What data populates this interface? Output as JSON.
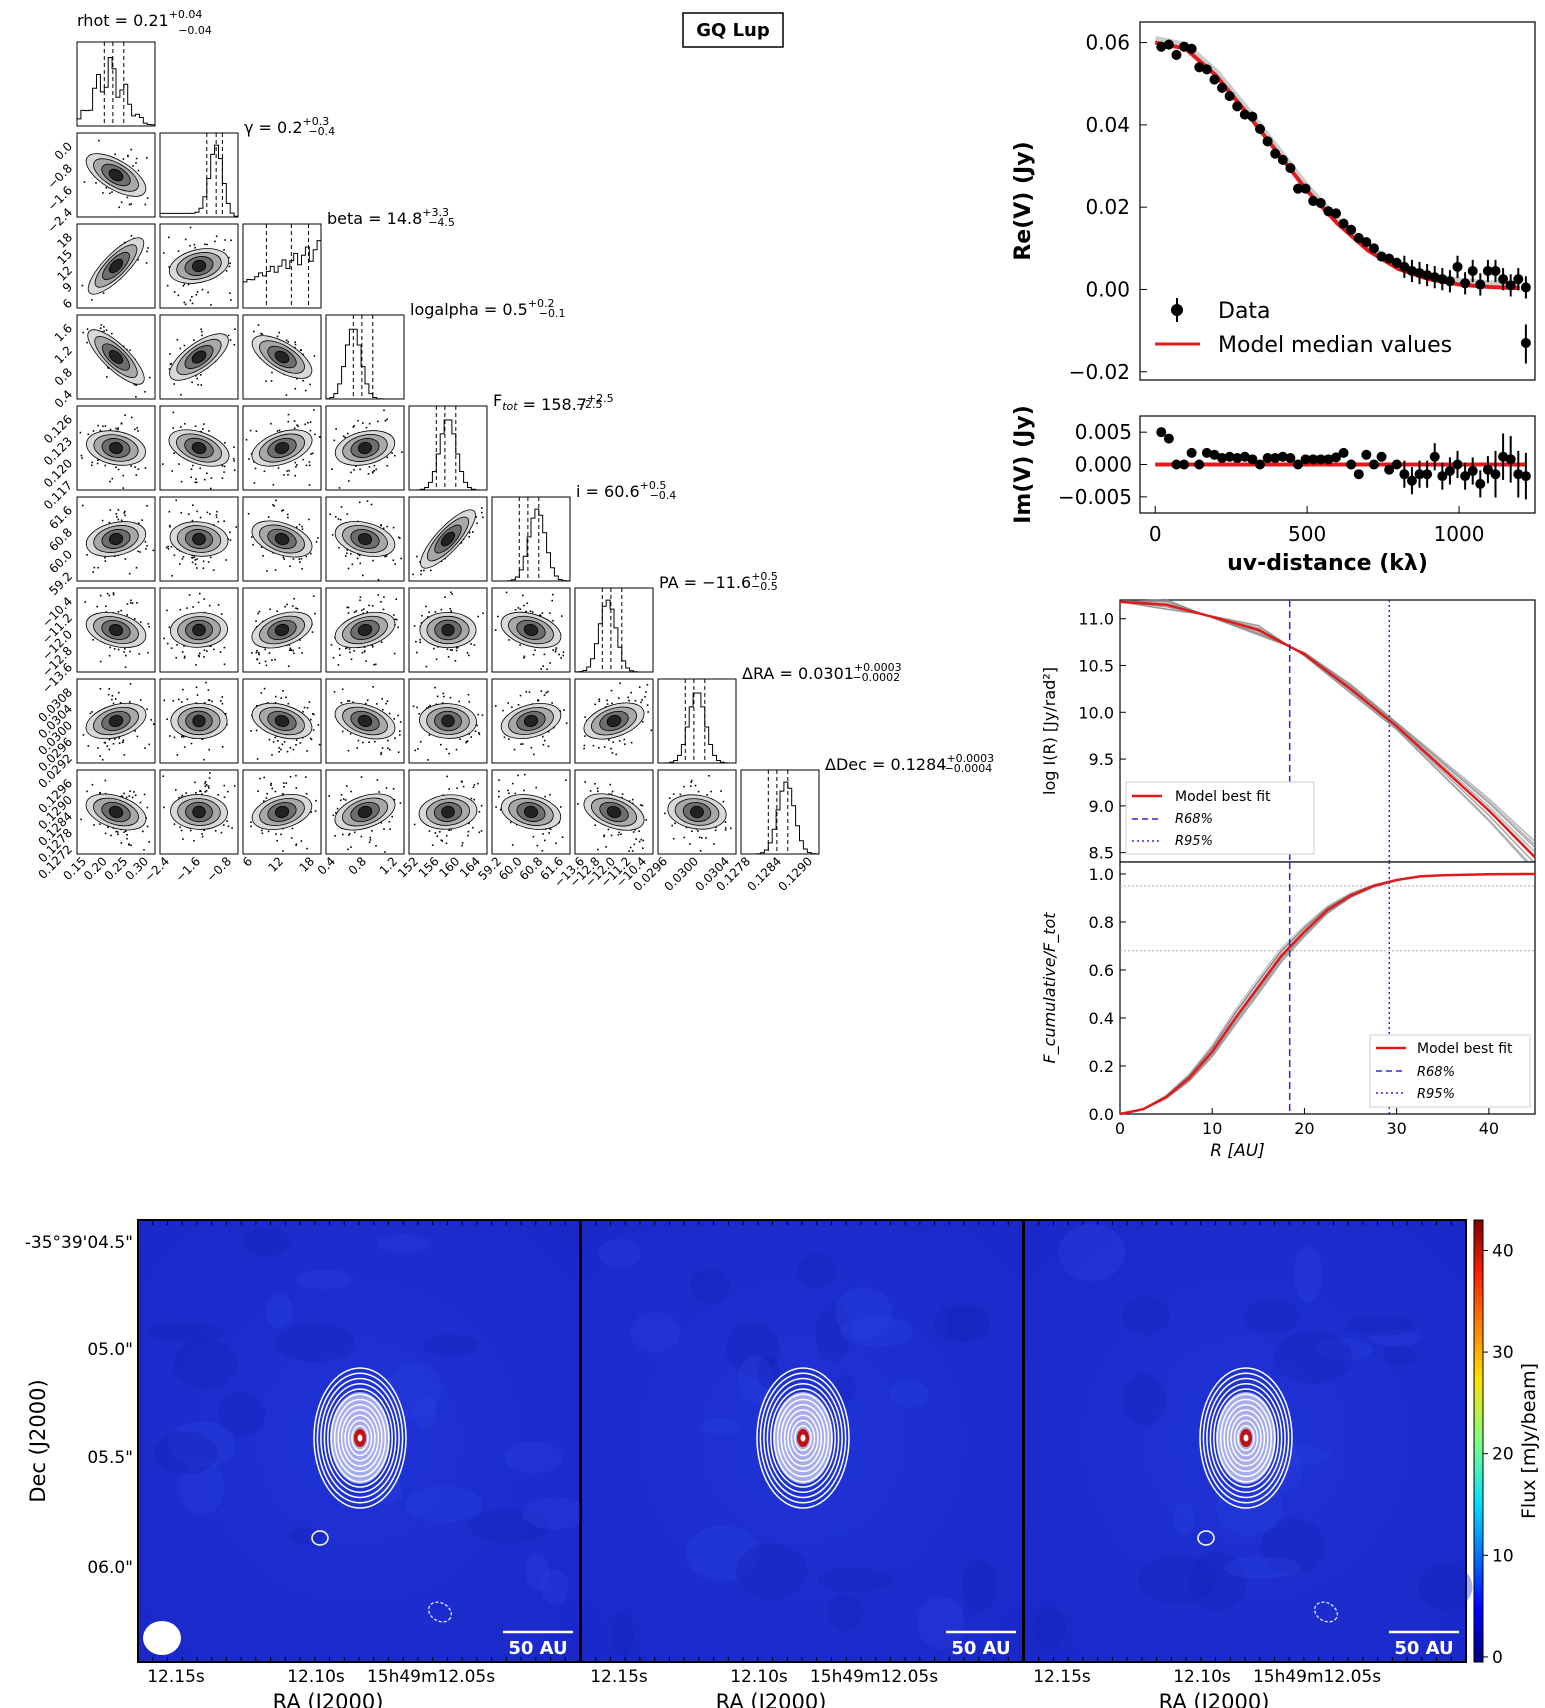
{
  "title": "GQ Lup",
  "corner": {
    "params": [
      {
        "name": "rhot",
        "value": "0.21",
        "plus": "+0.04",
        "minus": "−0.04",
        "ticks": [
          "0.15",
          "0.20",
          "0.25",
          "0.30"
        ],
        "ytick": []
      },
      {
        "name": "γ",
        "value": "0.2",
        "plus": "+0.3",
        "minus": "−0.4",
        "ticks": [
          "−2.4",
          "−1.6",
          "−0.8"
        ],
        "ytick": [
          "0.0",
          "−0.8",
          "−1.6",
          "−2.4"
        ]
      },
      {
        "name": "beta",
        "value": "14.8",
        "plus": "+3.3",
        "minus": "−4.5",
        "ticks": [
          "6",
          "12",
          "18"
        ],
        "ytick": [
          "18",
          "15",
          "12",
          "9",
          "6"
        ]
      },
      {
        "name": "logalpha",
        "value": "0.5",
        "plus": "+0.2",
        "minus": "−0.1",
        "ticks": [
          "0.4",
          "0.8",
          "1.2"
        ],
        "ytick": [
          "1.6",
          "1.2",
          "0.8",
          "0.4"
        ]
      },
      {
        "name": "F_tot",
        "value": "158.7",
        "plus": "+2.5",
        "minus": "−2.5",
        "ticks": [
          "152",
          "156",
          "160",
          "164"
        ],
        "ytick": [
          "0.126",
          "0.123",
          "0.120",
          "0.117"
        ]
      },
      {
        "name": "i",
        "value": "60.6",
        "plus": "+0.5",
        "minus": "−0.4",
        "ticks": [
          "59.2",
          "60.0",
          "60.8",
          "61.6"
        ],
        "ytick": [
          "61.6",
          "60.8",
          "60.0",
          "59.2"
        ]
      },
      {
        "name": "PA",
        "value": "−11.6",
        "plus": "+0.5",
        "minus": "−0.5",
        "ticks": [
          "−13.6",
          "−12.8",
          "−12.0",
          "−11.2",
          "−10.4"
        ],
        "ytick": [
          "−10.4",
          "−11.2",
          "−12.0",
          "−12.8",
          "−13.6"
        ]
      },
      {
        "name": "ΔRA",
        "value": "0.0301",
        "plus": "+0.0003",
        "minus": "−0.0002",
        "ticks": [
          "0.0296",
          "0.0300",
          "0.0304"
        ],
        "ytick": [
          "0.0308",
          "0.0304",
          "0.0300",
          "0.0296",
          "0.0292"
        ]
      },
      {
        "name": "ΔDec",
        "value": "0.1284",
        "plus": "+0.0003",
        "minus": "−0.0004",
        "ticks": [
          "0.1278",
          "0.1284",
          "0.1290"
        ],
        "ytick": [
          "0.1296",
          "0.1290",
          "0.1284",
          "0.1278",
          "0.1272"
        ]
      }
    ]
  },
  "chart_data": [
    {
      "type": "scatter",
      "title": "",
      "ylabel": "Re(V) (Jy)",
      "xlabel": "",
      "ylim": [
        -0.022,
        0.065
      ],
      "xlim": [
        -50,
        1250
      ],
      "yticks": [
        "0.06",
        "0.04",
        "0.02",
        "0.00",
        "−0.02"
      ],
      "legend": {
        "placement": "lower-left",
        "entries": [
          "Data",
          "Model median values"
        ]
      },
      "series": [
        {
          "name": "Data",
          "x": [
            20,
            45,
            70,
            95,
            120,
            145,
            170,
            195,
            220,
            245,
            270,
            295,
            320,
            345,
            370,
            395,
            420,
            445,
            470,
            495,
            520,
            545,
            570,
            595,
            620,
            645,
            670,
            695,
            720,
            745,
            770,
            795,
            820,
            845,
            870,
            895,
            920,
            945,
            970,
            995,
            1020,
            1045,
            1070,
            1095,
            1120,
            1145,
            1170,
            1195,
            1220
          ],
          "y": [
            0.059,
            0.0595,
            0.057,
            0.059,
            0.0585,
            0.054,
            0.0535,
            0.051,
            0.049,
            0.047,
            0.0445,
            0.0425,
            0.042,
            0.039,
            0.036,
            0.033,
            0.0315,
            0.0295,
            0.0245,
            0.0245,
            0.0215,
            0.021,
            0.019,
            0.0185,
            0.016,
            0.0145,
            0.0125,
            0.0115,
            0.01,
            0.008,
            0.0075,
            0.0065,
            0.0055,
            0.0045,
            0.004,
            0.0035,
            0.003,
            0.0025,
            0.002,
            0.0055,
            0.0015,
            0.0045,
            0.0012,
            0.0045,
            0.0045,
            0.0025,
            0.001,
            0.0025,
            0.0005
          ]
        },
        {
          "name": "Model median values",
          "x": [
            0,
            100,
            200,
            300,
            400,
            500,
            600,
            700,
            800,
            900,
            1000,
            1100,
            1200
          ],
          "y": [
            0.06,
            0.0585,
            0.052,
            0.043,
            0.0335,
            0.024,
            0.016,
            0.0095,
            0.005,
            0.0025,
            0.0012,
            0.0006,
            0.0003
          ]
        }
      ]
    },
    {
      "type": "scatter",
      "ylabel": "Im(V) (Jy)",
      "xlabel": "uv-distance (kλ)",
      "ylim": [
        -0.0075,
        0.0075
      ],
      "xlim": [
        -50,
        1250
      ],
      "yticks": [
        "0.005",
        "0.000",
        "−0.005"
      ],
      "xticks": [
        "0",
        "500",
        "1000"
      ],
      "series": [
        {
          "name": "Data",
          "x": [
            20,
            45,
            70,
            95,
            120,
            145,
            170,
            195,
            220,
            245,
            270,
            295,
            320,
            345,
            370,
            395,
            420,
            445,
            470,
            495,
            520,
            545,
            570,
            595,
            620,
            645,
            670,
            695,
            720,
            745,
            770,
            795,
            820,
            845,
            870,
            895,
            920,
            945,
            970,
            995,
            1020,
            1045,
            1070,
            1095,
            1120,
            1145,
            1170,
            1195,
            1220
          ],
          "y": [
            0.005,
            0.004,
            0.0,
            0.0,
            0.0018,
            0.0,
            0.0018,
            0.0015,
            0.001,
            0.0012,
            0.001,
            0.0012,
            0.0008,
            0.0,
            0.001,
            0.001,
            0.0012,
            0.001,
            0.0,
            0.0008,
            0.0008,
            0.0008,
            0.0008,
            0.0011,
            0.0018,
            0.0,
            -0.0015,
            0.0015,
            0.0,
            0.0012,
            -0.0008,
            0.0,
            -0.0015,
            -0.0025,
            -0.0015,
            -0.0015,
            0.0012,
            -0.0018,
            -0.001,
            0.0,
            -0.0018,
            -0.001,
            -0.003,
            -0.0008,
            -0.0015,
            0.0012,
            0.0008,
            -0.0015,
            -0.0018
          ]
        }
      ]
    },
    {
      "type": "line",
      "ylabel": "log I(R) [Jy/rad²]",
      "xlabel": "",
      "ylim": [
        8.4,
        11.2
      ],
      "xlim": [
        0,
        45
      ],
      "yticks": [
        "11.0",
        "10.5",
        "10.0",
        "9.5",
        "9.0",
        "8.5"
      ],
      "legend": {
        "placement": "lower-left",
        "entries": [
          "Model best fit",
          "R68%",
          "R95%"
        ]
      },
      "vlines": {
        "R68": 18.4,
        "R95": 29.2
      },
      "series": [
        {
          "name": "Model best fit",
          "x": [
            0,
            5,
            10,
            15,
            20,
            25,
            30,
            35,
            40,
            45
          ],
          "y": [
            11.18,
            11.15,
            11.02,
            10.88,
            10.62,
            10.25,
            9.85,
            9.4,
            8.95,
            8.45
          ]
        }
      ]
    },
    {
      "type": "line",
      "ylabel": "F_cumulative/F_tot",
      "xlabel": "R [AU]",
      "ylim": [
        0,
        1.05
      ],
      "xlim": [
        0,
        45
      ],
      "yticks": [
        "1.0",
        "0.8",
        "0.6",
        "0.4",
        "0.2",
        "0.0"
      ],
      "xticks": [
        "0",
        "10",
        "20",
        "30",
        "40"
      ],
      "legend": {
        "placement": "lower-right",
        "entries": [
          "Model best fit",
          "R68%",
          "R95%"
        ]
      },
      "hlines": [
        0.68,
        0.95
      ],
      "series": [
        {
          "name": "Model best fit",
          "x": [
            0,
            2.5,
            5,
            7.5,
            10,
            12.5,
            15,
            17.5,
            20,
            22.5,
            25,
            27.5,
            30,
            32.5,
            35,
            40,
            45
          ],
          "y": [
            0,
            0.02,
            0.07,
            0.15,
            0.26,
            0.4,
            0.53,
            0.66,
            0.76,
            0.85,
            0.91,
            0.95,
            0.975,
            0.99,
            0.995,
            0.999,
            1.0
          ]
        }
      ]
    }
  ],
  "maps": {
    "ylabel": "Dec (J2000)",
    "xlabel": "RA (J2000)",
    "yticks": [
      "-35°39'04.5\"",
      "05.0\"",
      "05.5\"",
      "06.0\""
    ],
    "xticks": [
      "12.15s",
      "12.10s",
      "15h49m12.05s"
    ],
    "scalebar": "50 AU",
    "colorbar": {
      "label": "Flux [mJy/beam]",
      "ticks": [
        "40",
        "30",
        "20",
        "10",
        "0"
      ]
    }
  }
}
